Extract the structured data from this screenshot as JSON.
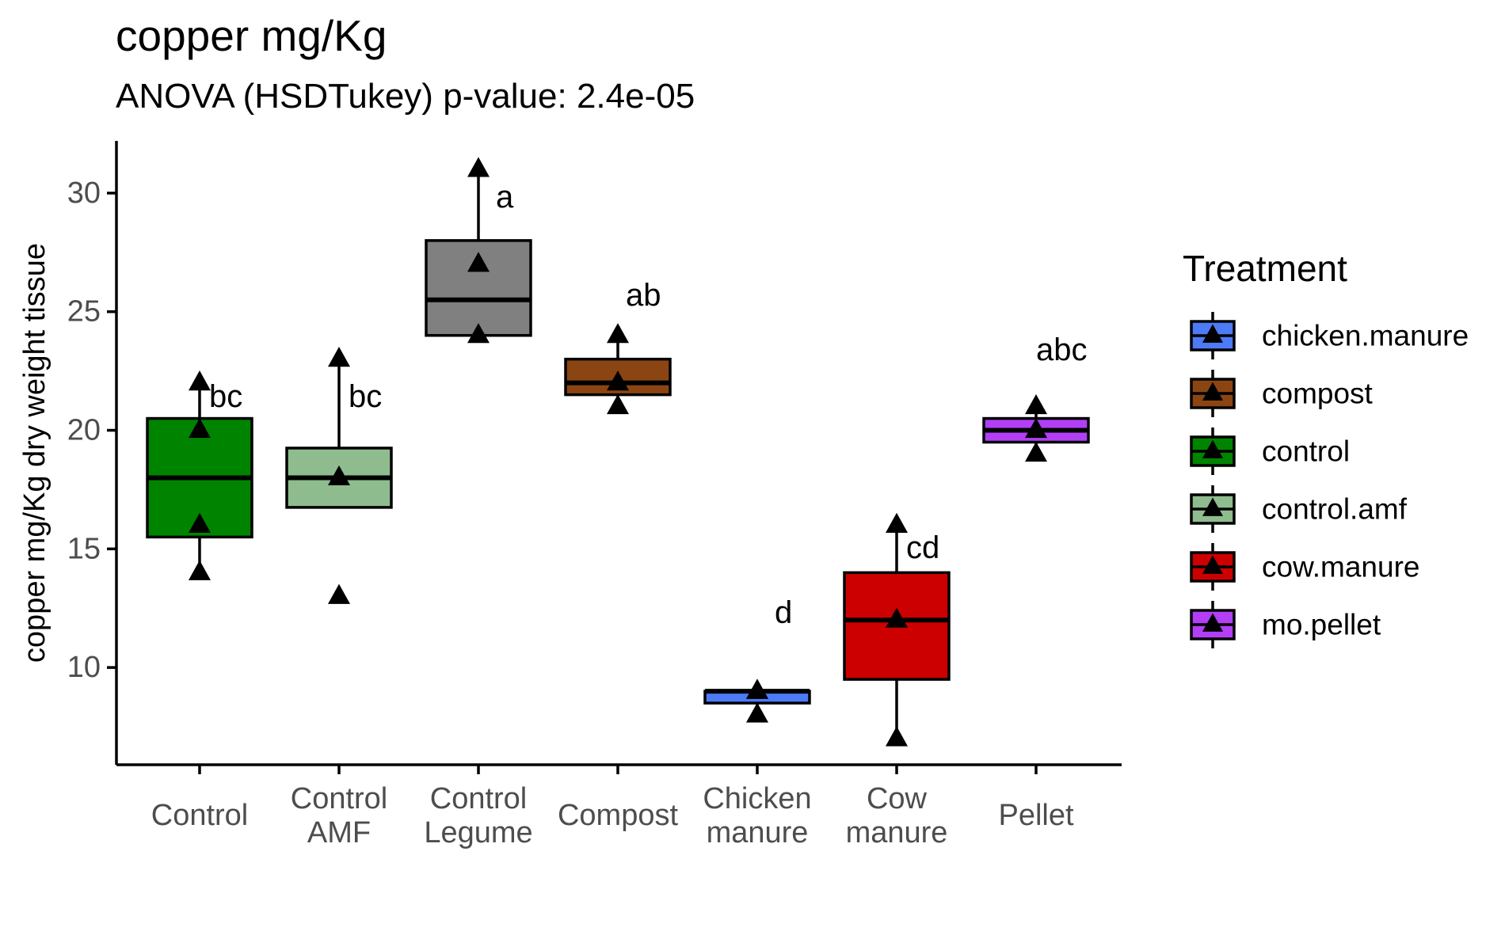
{
  "chart_data": {
    "type": "box",
    "title": "copper mg/Kg",
    "subtitle": "ANOVA (HSDTukey) p-value: 2.4e-05",
    "xlabel": "",
    "ylabel": "copper mg/Kg dry weight tissue",
    "ylim": [
      5.9,
      32.2
    ],
    "yticks": [
      10,
      15,
      20,
      25,
      30
    ],
    "grid": false,
    "legend": {
      "title": "Treatment",
      "placement": "right",
      "entries": [
        {
          "label": "chicken.manure",
          "color": "#4C7BF5"
        },
        {
          "label": "compost",
          "color": "#8B4513"
        },
        {
          "label": "control",
          "color": "#008400"
        },
        {
          "label": "control.amf",
          "color": "#8FBC8F"
        },
        {
          "label": "cow.manure",
          "color": "#CC0000"
        },
        {
          "label": "mo.pellet",
          "color": "#B23FF5"
        }
      ]
    },
    "groups": [
      {
        "label": [
          "Control"
        ],
        "treatment": "control",
        "color": "#008400",
        "q1": 15.5,
        "median": 18,
        "q3": 20.5,
        "whisker_low": 14,
        "whisker_high": 22,
        "outliers": [],
        "points": [
          14,
          16,
          20,
          22
        ],
        "letter": "bc"
      },
      {
        "label": [
          "Control",
          "AMF"
        ],
        "treatment": "control.amf",
        "color": "#8FBC8F",
        "q1": 16.75,
        "median": 18,
        "q3": 19.25,
        "whisker_low": 16.75,
        "whisker_high": 23,
        "outliers": [
          13
        ],
        "points": [
          13,
          18,
          23
        ],
        "letter": "bc"
      },
      {
        "label": [
          "Control",
          "Legume"
        ],
        "treatment": "control",
        "color": "#808080",
        "q1": 24,
        "median": 25.5,
        "q3": 28,
        "whisker_low": 24,
        "whisker_high": 31,
        "outliers": [],
        "points": [
          24,
          27,
          31
        ],
        "letter": "a"
      },
      {
        "label": [
          "Compost"
        ],
        "treatment": "compost",
        "color": "#8B4513",
        "q1": 21.5,
        "median": 22,
        "q3": 23,
        "whisker_low": 21,
        "whisker_high": 24,
        "outliers": [],
        "points": [
          21,
          22,
          24
        ],
        "letter": "ab"
      },
      {
        "label": [
          "Chicken",
          "manure"
        ],
        "treatment": "chicken.manure",
        "color": "#4C7BF5",
        "q1": 8.5,
        "median": 9,
        "q3": 9,
        "whisker_low": 8,
        "whisker_high": 9,
        "outliers": [],
        "points": [
          8,
          9,
          9
        ],
        "letter": "d"
      },
      {
        "label": [
          "Cow",
          "manure"
        ],
        "treatment": "cow.manure",
        "color": "#CC0000",
        "q1": 9.5,
        "median": 12,
        "q3": 14,
        "whisker_low": 7,
        "whisker_high": 16,
        "outliers": [],
        "points": [
          7,
          12,
          16
        ],
        "letter": "cd"
      },
      {
        "label": [
          "Pellet"
        ],
        "treatment": "mo.pellet",
        "color": "#B23FF5",
        "q1": 19.5,
        "median": 20,
        "q3": 20.5,
        "whisker_low": 19,
        "whisker_high": 21,
        "outliers": [],
        "points": [
          19,
          20,
          21
        ],
        "letter": "abc"
      }
    ]
  }
}
